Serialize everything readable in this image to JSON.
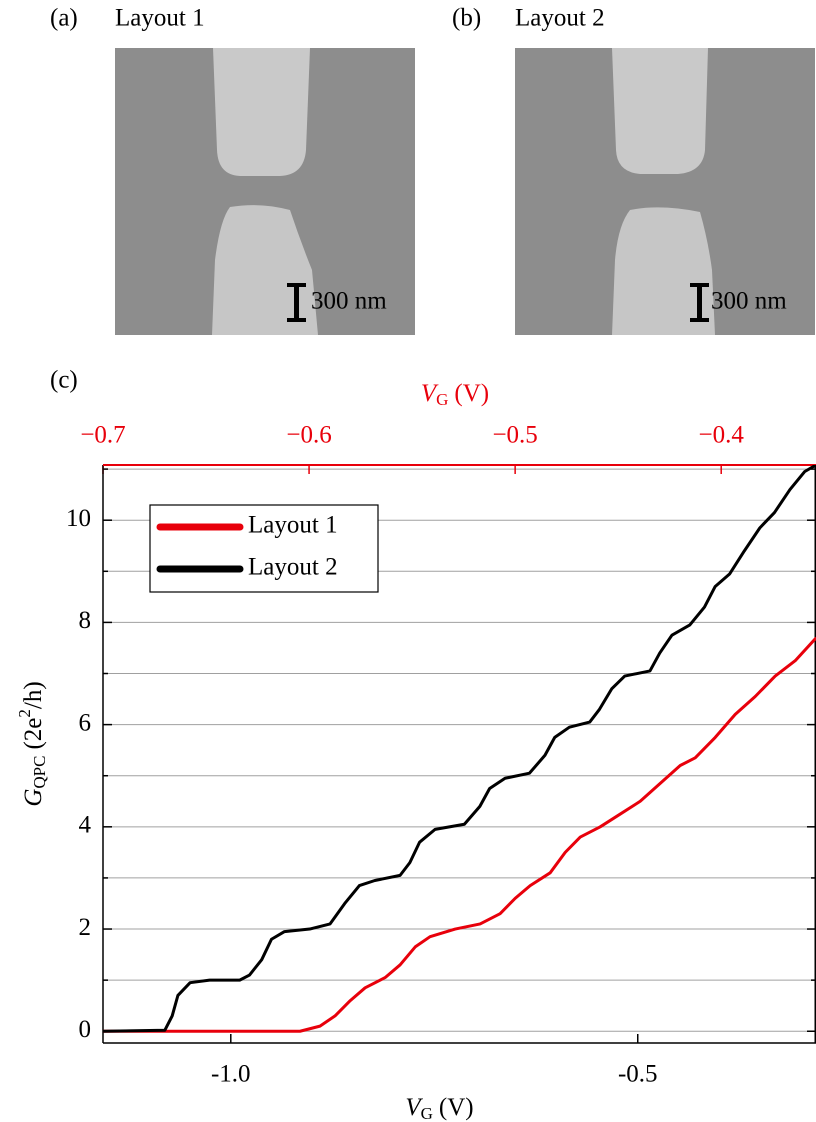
{
  "panels": [
    {
      "tag": "(a)",
      "title": "Layout 1",
      "scale_bar": "300 nm"
    },
    {
      "tag": "(b)",
      "title": "Layout 2",
      "scale_bar": "300 nm"
    }
  ],
  "chart_data": {
    "type": "line",
    "tag": "(c)",
    "xlabel": {
      "symbol": "V",
      "subscript": "G",
      "unit": "(V)"
    },
    "x2label": {
      "symbol": "V",
      "subscript": "G",
      "unit": "(V)"
    },
    "ylabel": {
      "symbol": "G",
      "subscript": "QPC",
      "unit_start": "(2e",
      "superscript": "2",
      "unit_end": "/h)"
    },
    "xlim": [
      -1.157,
      -0.281
    ],
    "xticks": [
      {
        "value": -1.0,
        "label": "-1.0"
      },
      {
        "value": -0.5,
        "label": "-0.5"
      }
    ],
    "x2lim": [
      -0.7,
      -0.354
    ],
    "x2ticks": [
      {
        "value": -0.7,
        "label": "−0.7"
      },
      {
        "value": -0.6,
        "label": "−0.6"
      },
      {
        "value": -0.5,
        "label": "−0.5"
      },
      {
        "value": -0.4,
        "label": "−0.4"
      }
    ],
    "x2color": "#e8000b",
    "ylim": [
      -0.23,
      11.08
    ],
    "yticks": [
      0,
      2,
      4,
      6,
      8,
      10
    ],
    "yminor": [
      1,
      3,
      5,
      7,
      9,
      11
    ],
    "grid": true,
    "legend": "upper left",
    "series": [
      {
        "name": "Layout 1",
        "color": "#e8000b",
        "axis": "x2",
        "x": [
          -0.7,
          -0.6044,
          -0.5947,
          -0.5874,
          -0.58,
          -0.5728,
          -0.5631,
          -0.5558,
          -0.5485,
          -0.5413,
          -0.5291,
          -0.517,
          -0.5073,
          -0.5,
          -0.4927,
          -0.483,
          -0.4757,
          -0.4684,
          -0.4587,
          -0.449,
          -0.4393,
          -0.4296,
          -0.4199,
          -0.4126,
          -0.4029,
          -0.3932,
          -0.3835,
          -0.3738,
          -0.3641,
          -0.3539
        ],
        "values": [
          0,
          0,
          0.1,
          0.3,
          0.6,
          0.85,
          1.05,
          1.3,
          1.65,
          1.85,
          2.0,
          2.1,
          2.3,
          2.6,
          2.85,
          3.1,
          3.5,
          3.8,
          4.0,
          4.25,
          4.5,
          4.85,
          5.2,
          5.35,
          5.75,
          6.2,
          6.55,
          6.95,
          7.25,
          7.7
        ]
      },
      {
        "name": "Layout 2",
        "color": "#000000",
        "axis": "x",
        "x": [
          -1.157,
          -1.081,
          -1.072,
          -1.065,
          -1.05,
          -1.026,
          -0.989,
          -0.977,
          -0.962,
          -0.95,
          -0.934,
          -0.903,
          -0.878,
          -0.86,
          -0.842,
          -0.823,
          -0.792,
          -0.78,
          -0.768,
          -0.749,
          -0.713,
          -0.694,
          -0.682,
          -0.663,
          -0.633,
          -0.614,
          -0.602,
          -0.584,
          -0.559,
          -0.547,
          -0.532,
          -0.516,
          -0.485,
          -0.473,
          -0.458,
          -0.436,
          -0.418,
          -0.405,
          -0.387,
          -0.369,
          -0.35,
          -0.332,
          -0.313,
          -0.295,
          -0.281
        ],
        "values": [
          0,
          0.02,
          0.3,
          0.7,
          0.95,
          1.0,
          1.0,
          1.1,
          1.4,
          1.8,
          1.95,
          2.0,
          2.1,
          2.5,
          2.85,
          2.95,
          3.05,
          3.3,
          3.7,
          3.95,
          4.05,
          4.4,
          4.75,
          4.95,
          5.05,
          5.4,
          5.75,
          5.95,
          6.05,
          6.3,
          6.7,
          6.95,
          7.05,
          7.4,
          7.75,
          7.95,
          8.3,
          8.7,
          8.95,
          9.4,
          9.85,
          10.15,
          10.6,
          10.95,
          11.08
        ]
      }
    ]
  }
}
